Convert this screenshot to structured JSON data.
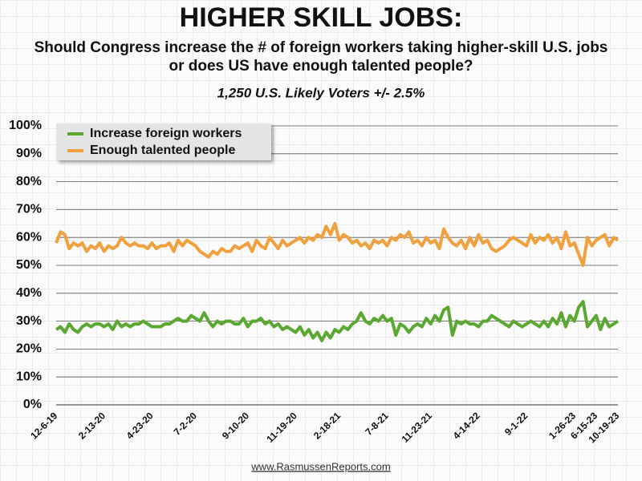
{
  "chart_data": {
    "type": "line",
    "title": "HIGHER SKILL JOBS:",
    "subtitle": "Should Congress increase the # of foreign workers taking higher-skill U.S. jobs or does US have enough talented people?",
    "note": "1,250 U.S. Likely Voters +/- 2.5%",
    "source": "www.RasmussenReports.com",
    "categories": [
      "12-6-19",
      null,
      null,
      null,
      null,
      null,
      null,
      null,
      null,
      null,
      null,
      "2-13-20",
      null,
      null,
      null,
      null,
      null,
      null,
      null,
      null,
      null,
      null,
      "4-23-20",
      null,
      null,
      null,
      null,
      null,
      null,
      null,
      null,
      null,
      "7-2-20",
      null,
      null,
      null,
      null,
      null,
      null,
      null,
      null,
      null,
      null,
      null,
      "9-10-20",
      null,
      null,
      null,
      null,
      null,
      null,
      null,
      null,
      null,
      null,
      "11-19-20",
      null,
      null,
      null,
      null,
      null,
      null,
      null,
      null,
      null,
      "2-18-21",
      null,
      null,
      null,
      null,
      null,
      null,
      null,
      null,
      null,
      null,
      "7-8-21",
      null,
      null,
      null,
      null,
      null,
      null,
      null,
      null,
      null,
      "11-23-21",
      null,
      null,
      null,
      null,
      null,
      null,
      null,
      null,
      null,
      null,
      "4-14-22",
      null,
      null,
      null,
      null,
      null,
      null,
      null,
      null,
      null,
      null,
      "9-1-22",
      null,
      null,
      null,
      null,
      null,
      null,
      null,
      null,
      null,
      null,
      "1-26-23",
      null,
      null,
      null,
      null,
      "6-15-23",
      null,
      null,
      null,
      null,
      "10-19-23"
    ],
    "series": [
      {
        "name": "Increase foreign workers",
        "color": "#5aa832",
        "values": [
          27,
          28,
          26,
          29,
          27,
          26,
          28,
          29,
          28,
          29,
          29,
          28,
          29,
          27,
          30,
          28,
          29,
          28,
          29,
          29,
          30,
          29,
          28,
          28,
          28,
          29,
          29,
          30,
          31,
          30,
          30,
          32,
          31,
          30,
          33,
          30,
          28,
          30,
          29,
          30,
          30,
          29,
          29,
          31,
          28,
          30,
          30,
          31,
          29,
          30,
          28,
          29,
          27,
          28,
          27,
          26,
          28,
          25,
          27,
          24,
          26,
          23,
          26,
          24,
          27,
          26,
          28,
          27,
          29,
          30,
          33,
          30,
          29,
          31,
          30,
          32,
          30,
          31,
          25,
          29,
          28,
          26,
          28,
          29,
          28,
          31,
          29,
          32,
          30,
          34,
          35,
          25,
          30,
          29,
          30,
          29,
          29,
          28,
          30,
          30,
          32,
          31,
          30,
          29,
          28,
          30,
          29,
          28,
          29,
          30,
          29,
          28,
          30,
          28,
          31,
          29,
          33,
          28,
          32,
          30,
          35,
          37,
          28,
          30,
          32,
          27,
          31,
          28,
          29,
          30
        ]
      },
      {
        "name": "Enough talented people",
        "color": "#f0a03c",
        "values": [
          58,
          62,
          61,
          56,
          58,
          57,
          58,
          55,
          57,
          56,
          58,
          55,
          57,
          56,
          57,
          60,
          58,
          57,
          58,
          57,
          57,
          56,
          58,
          56,
          57,
          57,
          58,
          55,
          59,
          57,
          59,
          58,
          57,
          55,
          54,
          53,
          55,
          54,
          56,
          55,
          55,
          57,
          56,
          57,
          58,
          55,
          59,
          57,
          56,
          60,
          58,
          56,
          59,
          57,
          58,
          59,
          60,
          58,
          60,
          59,
          61,
          60,
          64,
          61,
          65,
          59,
          61,
          60,
          58,
          59,
          57,
          58,
          56,
          59,
          58,
          59,
          57,
          60,
          59,
          61,
          60,
          62,
          58,
          59,
          57,
          60,
          58,
          59,
          56,
          63,
          60,
          58,
          57,
          59,
          56,
          60,
          57,
          61,
          58,
          59,
          56,
          55,
          56,
          57,
          59,
          60,
          59,
          58,
          57,
          61,
          58,
          60,
          59,
          61,
          58,
          60,
          56,
          62,
          57,
          58,
          54,
          50,
          60,
          57,
          59,
          60,
          61,
          57,
          60,
          59
        ]
      }
    ],
    "ylim": [
      0,
      100
    ],
    "yticks": [
      {
        "value": 0,
        "label": "0%"
      },
      {
        "value": 10,
        "label": "10%"
      },
      {
        "value": 20,
        "label": "20%"
      },
      {
        "value": 30,
        "label": "30%"
      },
      {
        "value": 40,
        "label": "40%"
      },
      {
        "value": 50,
        "label": "50%"
      },
      {
        "value": 60,
        "label": "60%"
      },
      {
        "value": 70,
        "label": "70%"
      },
      {
        "value": 80,
        "label": "80%"
      },
      {
        "value": 90,
        "label": "90%"
      },
      {
        "value": 100,
        "label": "100%"
      }
    ],
    "grid": true,
    "legend": "top-left"
  }
}
